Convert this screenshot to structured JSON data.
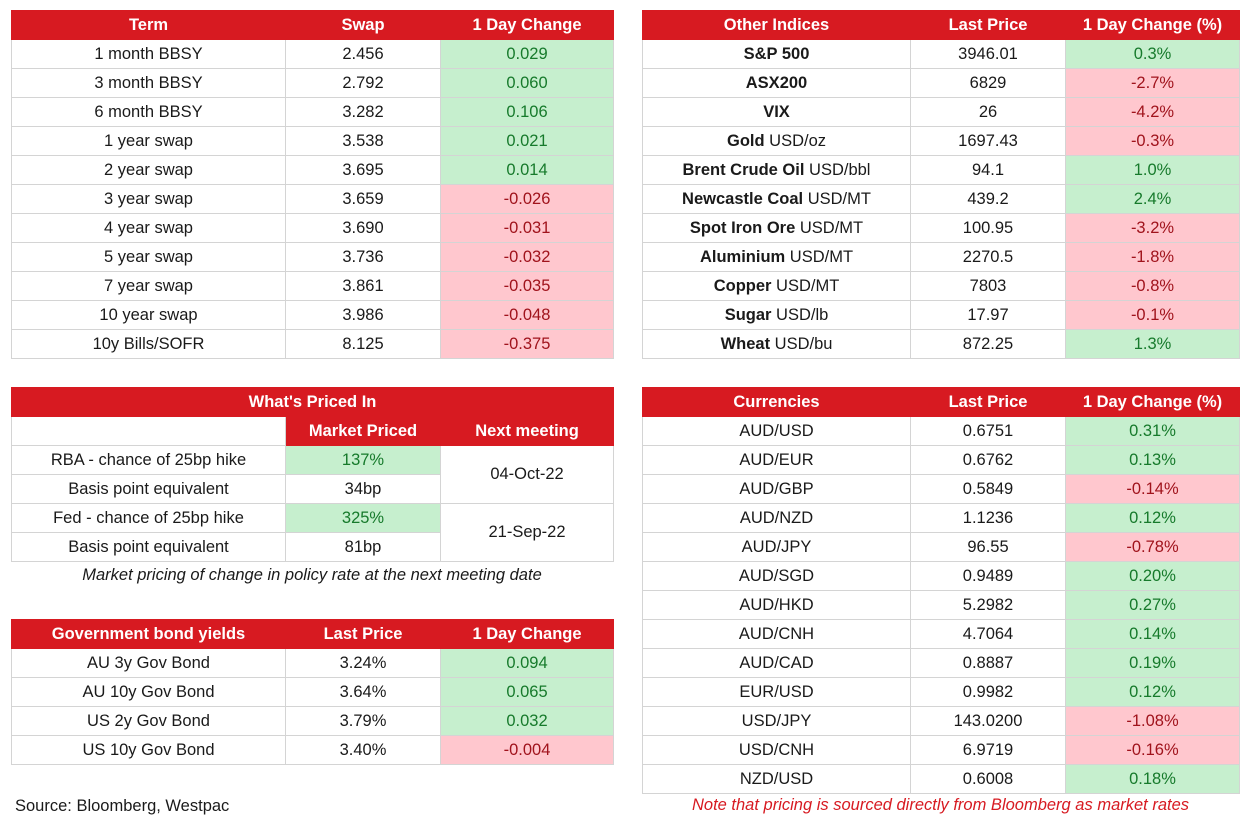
{
  "swap": {
    "headers": [
      "Term",
      "Swap",
      "1 Day Change"
    ],
    "rows": [
      {
        "term": "1 month BBSY",
        "swap": "2.456",
        "change": "0.029",
        "dir": "pos"
      },
      {
        "term": "3 month BBSY",
        "swap": "2.792",
        "change": "0.060",
        "dir": "pos"
      },
      {
        "term": "6 month BBSY",
        "swap": "3.282",
        "change": "0.106",
        "dir": "pos"
      },
      {
        "term": "1 year swap",
        "swap": "3.538",
        "change": "0.021",
        "dir": "pos"
      },
      {
        "term": "2 year swap",
        "swap": "3.695",
        "change": "0.014",
        "dir": "pos"
      },
      {
        "term": "3 year swap",
        "swap": "3.659",
        "change": "-0.026",
        "dir": "neg"
      },
      {
        "term": "4 year swap",
        "swap": "3.690",
        "change": "-0.031",
        "dir": "neg"
      },
      {
        "term": "5 year swap",
        "swap": "3.736",
        "change": "-0.032",
        "dir": "neg"
      },
      {
        "term": "7 year swap",
        "swap": "3.861",
        "change": "-0.035",
        "dir": "neg"
      },
      {
        "term": "10 year swap",
        "swap": "3.986",
        "change": "-0.048",
        "dir": "neg"
      },
      {
        "term": "10y Bills/SOFR",
        "swap": "8.125",
        "change": "-0.375",
        "dir": "neg"
      }
    ]
  },
  "indices": {
    "headers": [
      "Other Indices",
      "Last Price",
      "1 Day Change (%)"
    ],
    "rows": [
      {
        "name": "S&P 500",
        "unit": "",
        "price": "3946.01",
        "change": "0.3%",
        "dir": "pos"
      },
      {
        "name": "ASX200",
        "unit": "",
        "price": "6829",
        "change": "-2.7%",
        "dir": "neg"
      },
      {
        "name": "VIX",
        "unit": "",
        "price": "26",
        "change": "-4.2%",
        "dir": "neg"
      },
      {
        "name": "Gold",
        "unit": "USD/oz",
        "price": "1697.43",
        "change": "-0.3%",
        "dir": "neg"
      },
      {
        "name": "Brent Crude Oil",
        "unit": "USD/bbl",
        "price": "94.1",
        "change": "1.0%",
        "dir": "pos"
      },
      {
        "name": "Newcastle Coal",
        "unit": "USD/MT",
        "price": "439.2",
        "change": "2.4%",
        "dir": "pos"
      },
      {
        "name": "Spot Iron Ore",
        "unit": "USD/MT",
        "price": "100.95",
        "change": "-3.2%",
        "dir": "neg"
      },
      {
        "name": "Aluminium",
        "unit": "USD/MT",
        "price": "2270.5",
        "change": "-1.8%",
        "dir": "neg"
      },
      {
        "name": "Copper",
        "unit": "USD/MT",
        "price": "7803",
        "change": "-0.8%",
        "dir": "neg"
      },
      {
        "name": "Sugar",
        "unit": "USD/lb",
        "price": "17.97",
        "change": "-0.1%",
        "dir": "neg"
      },
      {
        "name": "Wheat",
        "unit": "USD/bu",
        "price": "872.25",
        "change": "1.3%",
        "dir": "pos"
      }
    ]
  },
  "priced_in": {
    "title": "What's Priced In",
    "sub_headers": [
      "Market Priced",
      "Next meeting"
    ],
    "groups": [
      {
        "hike_label": "RBA - chance of 25bp hike",
        "hike_value": "137%",
        "bp_label": "Basis point equivalent",
        "bp_value": "34bp",
        "next_meeting": "04-Oct-22"
      },
      {
        "hike_label": "Fed - chance of 25bp hike",
        "hike_value": "325%",
        "bp_label": "Basis point equivalent",
        "bp_value": "81bp",
        "next_meeting": "21-Sep-22"
      }
    ],
    "note": "Market pricing of change in policy rate at the next meeting date"
  },
  "bonds": {
    "headers": [
      "Government bond yields",
      "Last Price",
      "1 Day Change"
    ],
    "rows": [
      {
        "name": "AU 3y Gov Bond",
        "price": "3.24%",
        "change": "0.094",
        "dir": "pos"
      },
      {
        "name": "AU 10y Gov Bond",
        "price": "3.64%",
        "change": "0.065",
        "dir": "pos"
      },
      {
        "name": "US 2y Gov Bond",
        "price": "3.79%",
        "change": "0.032",
        "dir": "pos"
      },
      {
        "name": "US 10y Gov Bond",
        "price": "3.40%",
        "change": "-0.004",
        "dir": "neg"
      }
    ]
  },
  "currencies": {
    "headers": [
      "Currencies",
      "Last Price",
      "1 Day Change (%)"
    ],
    "rows": [
      {
        "pair": "AUD/USD",
        "price": "0.6751",
        "change": "0.31%",
        "dir": "pos"
      },
      {
        "pair": "AUD/EUR",
        "price": "0.6762",
        "change": "0.13%",
        "dir": "pos"
      },
      {
        "pair": "AUD/GBP",
        "price": "0.5849",
        "change": "-0.14%",
        "dir": "neg"
      },
      {
        "pair": "AUD/NZD",
        "price": "1.1236",
        "change": "0.12%",
        "dir": "pos"
      },
      {
        "pair": "AUD/JPY",
        "price": "96.55",
        "change": "-0.78%",
        "dir": "neg"
      },
      {
        "pair": "AUD/SGD",
        "price": "0.9489",
        "change": "0.20%",
        "dir": "pos"
      },
      {
        "pair": "AUD/HKD",
        "price": "5.2982",
        "change": "0.27%",
        "dir": "pos"
      },
      {
        "pair": "AUD/CNH",
        "price": "4.7064",
        "change": "0.14%",
        "dir": "pos"
      },
      {
        "pair": "AUD/CAD",
        "price": "0.8887",
        "change": "0.19%",
        "dir": "pos"
      },
      {
        "pair": "EUR/USD",
        "price": "0.9982",
        "change": "0.12%",
        "dir": "pos"
      },
      {
        "pair": "USD/JPY",
        "price": "143.0200",
        "change": "-1.08%",
        "dir": "neg"
      },
      {
        "pair": "USD/CNH",
        "price": "6.9719",
        "change": "-0.16%",
        "dir": "neg"
      },
      {
        "pair": "NZD/USD",
        "price": "0.6008",
        "change": "0.18%",
        "dir": "pos"
      }
    ]
  },
  "footer": {
    "source": "Source: Bloomberg, Westpac",
    "bloomberg_note": "Note that pricing is sourced directly from Bloomberg as market rates"
  },
  "colors": {
    "header_red": "#d71a21",
    "positive_bg": "#c6efce",
    "negative_bg": "#ffc7ce"
  }
}
